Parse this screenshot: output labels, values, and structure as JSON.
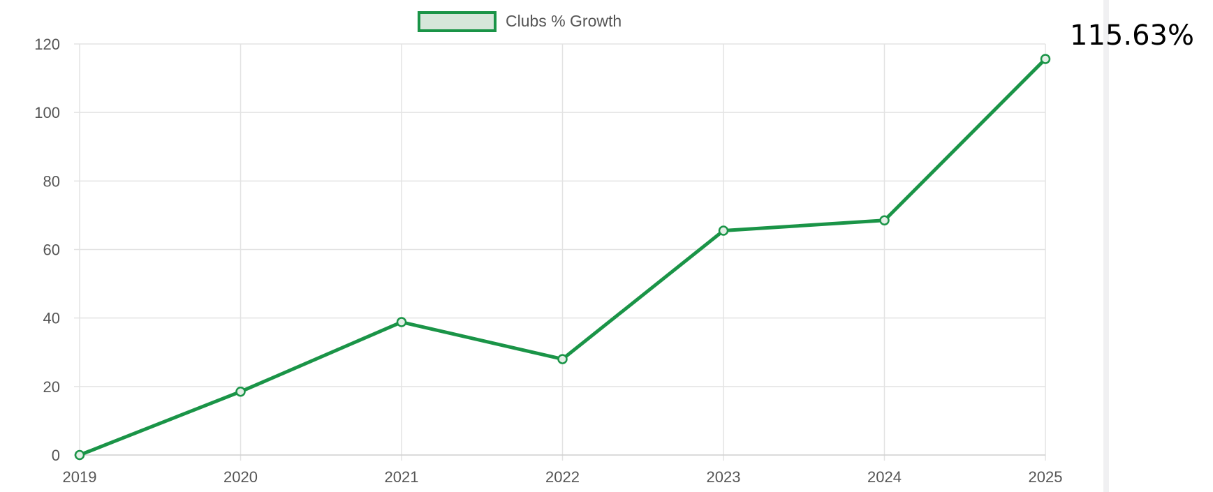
{
  "chart_data": {
    "type": "line",
    "x": [
      "2019",
      "2020",
      "2021",
      "2022",
      "2023",
      "2024",
      "2025"
    ],
    "series": [
      {
        "name": "Clubs % Growth",
        "values": [
          0,
          18.5,
          38.8,
          28,
          65.5,
          68.5,
          115.63
        ]
      }
    ],
    "ylim": [
      0,
      120
    ],
    "yticks": [
      0,
      20,
      40,
      60,
      80,
      100,
      120
    ],
    "grid": true,
    "legend_position": "top-center",
    "annotation": "115.63%",
    "colors": {
      "line": "#1a9447",
      "legend_fill": "#d6e6da"
    }
  }
}
